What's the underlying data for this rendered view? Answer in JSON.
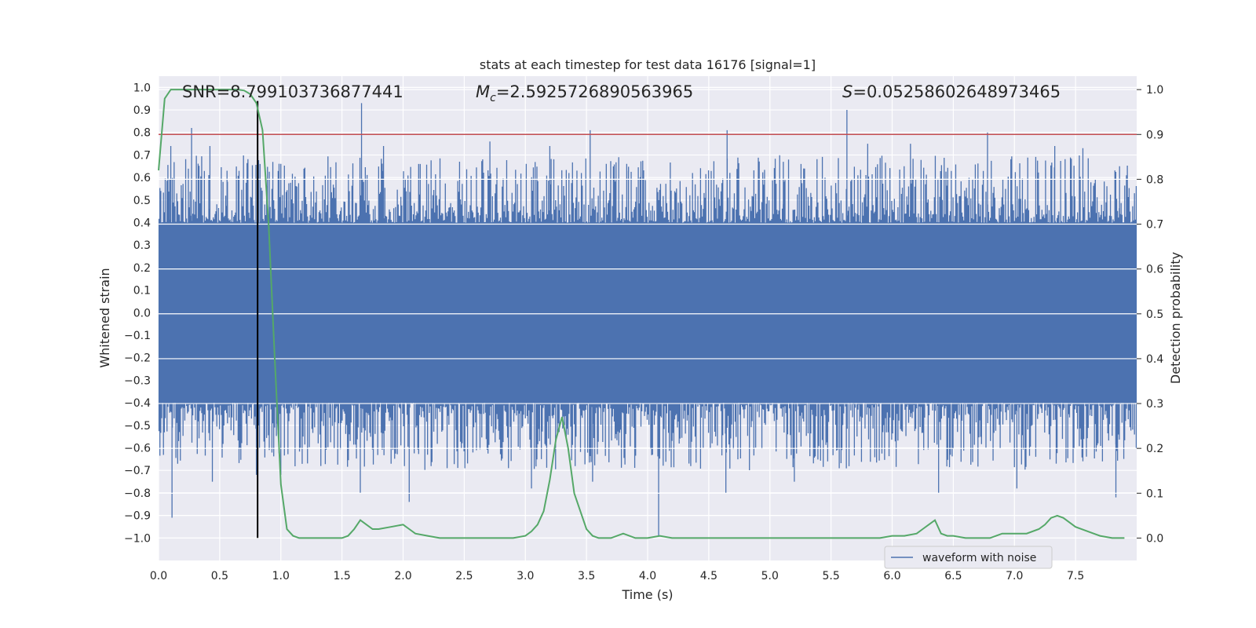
{
  "chart_data": {
    "type": "line",
    "title": "stats at each timestep for test data 16176 [signal=1]",
    "xlabel": "Time (s)",
    "ylabel_left": "Whitened strain",
    "ylabel_right": "Detection probability",
    "xlim": [
      0,
      8
    ],
    "ylim_left": [
      -1.1,
      1.05
    ],
    "ylim_right": [
      -0.05,
      1.03
    ],
    "x_ticks": [
      0.0,
      0.5,
      1.0,
      1.5,
      2.0,
      2.5,
      3.0,
      3.5,
      4.0,
      4.5,
      5.0,
      5.5,
      6.0,
      6.5,
      7.0,
      7.5
    ],
    "x_tick_labels": [
      "0.0",
      "0.5",
      "1.0",
      "1.5",
      "2.0",
      "2.5",
      "3.0",
      "3.5",
      "4.0",
      "4.5",
      "5.0",
      "5.5",
      "6.0",
      "6.5",
      "7.0",
      "7.5"
    ],
    "y_left_ticks": [
      1.0,
      0.9,
      0.8,
      0.7,
      0.6,
      0.5,
      0.4,
      0.3,
      0.2,
      0.1,
      0.0,
      -0.1,
      -0.2,
      -0.3,
      -0.4,
      -0.5,
      -0.6,
      -0.7,
      -0.8,
      -0.9,
      -1.0
    ],
    "y_left_tick_labels": [
      "1.0",
      "0.9",
      "0.8",
      "0.7",
      "0.6",
      "0.5",
      "0.4",
      "0.3",
      "0.2",
      "0.1",
      "0.0",
      "−0.1",
      "−0.2",
      "−0.3",
      "−0.4",
      "−0.5",
      "−0.6",
      "−0.7",
      "−0.8",
      "−0.9",
      "−1.0"
    ],
    "y_right_ticks": [
      1.0,
      0.9,
      0.8,
      0.7,
      0.6,
      0.5,
      0.4,
      0.3,
      0.2,
      0.1,
      0.0
    ],
    "y_right_tick_labels": [
      "1.0",
      "0.9",
      "0.8",
      "0.7",
      "0.6",
      "0.5",
      "0.4",
      "0.3",
      "0.2",
      "0.1",
      "0.0"
    ],
    "annotations": {
      "snr": "SNR=8.799103736877441",
      "mc_symbol": "M",
      "mc_sub": "c",
      "mc_value": "=2.5925726890563965",
      "s_symbol": "S",
      "s_value": "=0.05258602648973465"
    },
    "threshold": {
      "axis": "right",
      "value": 0.9
    },
    "event_marker": {
      "x": 0.81,
      "y_from": -1.0,
      "y_to": 0.94
    },
    "waveform": {
      "name": "waveform with noise",
      "envelope": 0.4,
      "peaks_up": [
        [
          0.1,
          0.74
        ],
        [
          0.27,
          0.82
        ],
        [
          0.42,
          0.74
        ],
        [
          0.56,
          0.63
        ],
        [
          0.83,
          0.66
        ],
        [
          1.66,
          0.93
        ],
        [
          1.84,
          0.74
        ],
        [
          2.14,
          0.66
        ],
        [
          2.71,
          0.76
        ],
        [
          3.2,
          0.74
        ],
        [
          3.53,
          0.81
        ],
        [
          3.83,
          0.63
        ],
        [
          4.65,
          0.81
        ],
        [
          5.11,
          0.67
        ],
        [
          5.63,
          0.9
        ],
        [
          5.8,
          0.75
        ],
        [
          6.15,
          0.75
        ],
        [
          6.78,
          0.8
        ],
        [
          7.33,
          0.74
        ],
        [
          7.56,
          0.73
        ],
        [
          7.86,
          0.65
        ]
      ],
      "peaks_down": [
        [
          0.11,
          -0.91
        ],
        [
          0.44,
          -0.75
        ],
        [
          0.8,
          -0.72
        ],
        [
          1.0,
          -0.72
        ],
        [
          1.65,
          -0.8
        ],
        [
          2.05,
          -0.84
        ],
        [
          3.05,
          -0.78
        ],
        [
          3.55,
          -0.75
        ],
        [
          4.09,
          -0.99
        ],
        [
          4.64,
          -0.8
        ],
        [
          5.2,
          -0.75
        ],
        [
          6.38,
          -0.8
        ],
        [
          7.02,
          -0.78
        ],
        [
          7.83,
          -0.82
        ]
      ],
      "color": "#4c72b0"
    },
    "series_probability": {
      "name": "detection probability",
      "color": "#55a868",
      "x": [
        0.0,
        0.05,
        0.1,
        0.15,
        0.2,
        0.3,
        0.4,
        0.5,
        0.6,
        0.65,
        0.7,
        0.75,
        0.8,
        0.85,
        0.9,
        0.95,
        1.0,
        1.05,
        1.1,
        1.15,
        1.2,
        1.3,
        1.4,
        1.5,
        1.55,
        1.6,
        1.65,
        1.7,
        1.75,
        1.8,
        1.9,
        2.0,
        2.05,
        2.1,
        2.2,
        2.3,
        2.4,
        2.5,
        2.6,
        2.8,
        2.9,
        3.0,
        3.05,
        3.1,
        3.15,
        3.2,
        3.25,
        3.3,
        3.35,
        3.4,
        3.45,
        3.5,
        3.55,
        3.6,
        3.7,
        3.8,
        3.9,
        4.0,
        4.1,
        4.2,
        4.4,
        4.6,
        4.8,
        5.0,
        5.2,
        5.4,
        5.6,
        5.8,
        5.9,
        6.0,
        6.1,
        6.2,
        6.25,
        6.3,
        6.35,
        6.4,
        6.45,
        6.5,
        6.6,
        6.7,
        6.8,
        6.9,
        7.0,
        7.1,
        7.2,
        7.25,
        7.3,
        7.35,
        7.4,
        7.45,
        7.5,
        7.6,
        7.7,
        7.8,
        7.9
      ],
      "y": [
        0.82,
        0.98,
        1.0,
        1.0,
        1.0,
        1.0,
        1.0,
        1.0,
        1.0,
        1.0,
        0.998,
        0.99,
        0.97,
        0.91,
        0.7,
        0.4,
        0.12,
        0.02,
        0.005,
        0.0,
        0.0,
        0.0,
        0.0,
        0.0,
        0.005,
        0.02,
        0.04,
        0.03,
        0.02,
        0.02,
        0.025,
        0.03,
        0.02,
        0.01,
        0.005,
        0.0,
        0.0,
        0.0,
        0.0,
        0.0,
        0.0,
        0.005,
        0.015,
        0.03,
        0.06,
        0.13,
        0.22,
        0.27,
        0.2,
        0.1,
        0.06,
        0.02,
        0.005,
        0.0,
        0.0,
        0.01,
        0.0,
        0.0,
        0.005,
        0.0,
        0.0,
        0.0,
        0.0,
        0.0,
        0.0,
        0.0,
        0.0,
        0.0,
        0.0,
        0.005,
        0.005,
        0.01,
        0.02,
        0.03,
        0.04,
        0.01,
        0.005,
        0.005,
        0.0,
        0.0,
        0.0,
        0.01,
        0.01,
        0.01,
        0.02,
        0.03,
        0.045,
        0.05,
        0.045,
        0.035,
        0.025,
        0.015,
        0.005,
        0.0,
        0.0
      ]
    },
    "legend": {
      "label": "waveform with noise",
      "placement": "lower-right"
    },
    "colors": {
      "axes_bg": "#eaeaf2",
      "grid": "#ffffff",
      "threshold": "#c44e52",
      "marker": "#000000"
    }
  }
}
